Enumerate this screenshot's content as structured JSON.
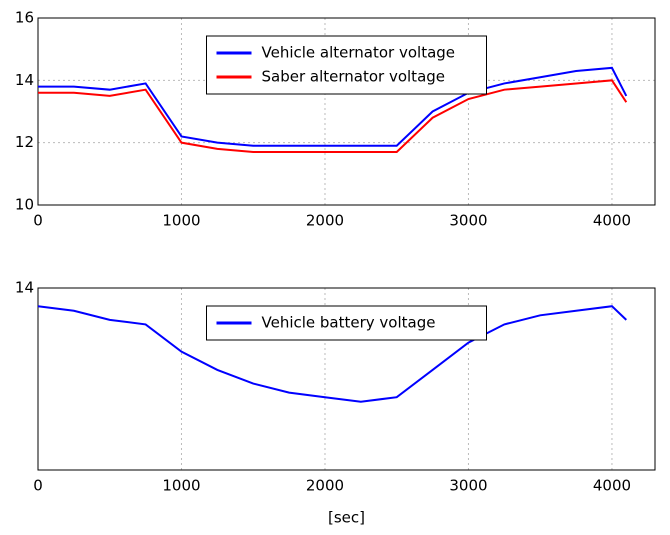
{
  "chart_data": [
    {
      "type": "line",
      "x": [
        0,
        250,
        500,
        750,
        1000,
        1250,
        1500,
        1750,
        2000,
        2250,
        2500,
        2750,
        3000,
        3250,
        3500,
        3750,
        4000,
        4100
      ],
      "series": [
        {
          "name": "Vehicle alternator voltage",
          "color": "#0000ff",
          "values": [
            13.8,
            13.8,
            13.7,
            13.9,
            12.2,
            12.0,
            11.9,
            11.9,
            11.9,
            11.9,
            11.9,
            13.0,
            13.6,
            13.9,
            14.1,
            14.3,
            14.4,
            13.5
          ]
        },
        {
          "name": "Saber alternator voltage",
          "color": "#ff0000",
          "values": [
            13.6,
            13.6,
            13.5,
            13.7,
            12.0,
            11.8,
            11.7,
            11.7,
            11.7,
            11.7,
            11.7,
            12.8,
            13.4,
            13.7,
            13.8,
            13.9,
            14.0,
            13.3
          ]
        }
      ],
      "xlim": [
        0,
        4300
      ],
      "xticks": [
        0,
        1000,
        2000,
        3000,
        4000
      ],
      "ylim": [
        10,
        16
      ],
      "yticks": [
        10,
        12,
        14,
        16
      ],
      "grid": true,
      "legend": "upper center"
    },
    {
      "type": "line",
      "x": [
        0,
        250,
        500,
        750,
        1000,
        1250,
        1500,
        1750,
        2000,
        2250,
        2500,
        2750,
        3000,
        3250,
        3500,
        3750,
        4000,
        4100
      ],
      "series": [
        {
          "name": "Vehicle battery voltage",
          "color": "#0000ff",
          "values": [
            13.6,
            13.5,
            13.3,
            13.2,
            12.6,
            12.2,
            11.9,
            11.7,
            11.6,
            11.5,
            11.6,
            12.2,
            12.8,
            13.2,
            13.4,
            13.5,
            13.6,
            13.3
          ]
        }
      ],
      "xlim": [
        0,
        4300
      ],
      "xticks": [
        0,
        1000,
        2000,
        3000,
        4000
      ],
      "ylim": [
        10,
        14
      ],
      "yticks": [
        14
      ],
      "xlabel": "[sec]",
      "grid": true,
      "legend": "upper center"
    }
  ]
}
